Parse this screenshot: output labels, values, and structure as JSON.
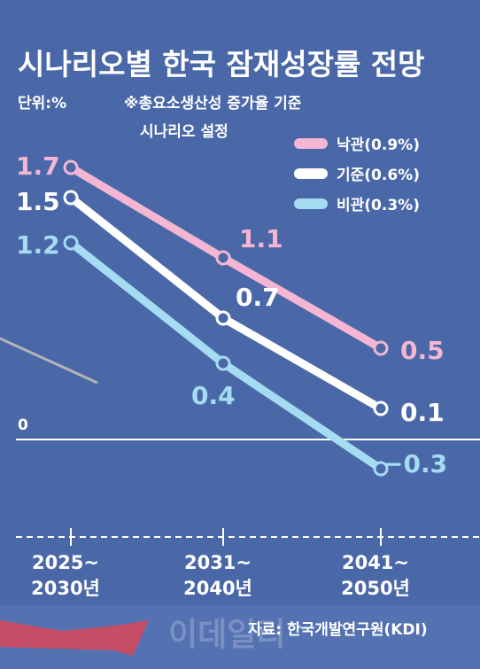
{
  "chart_data": {
    "type": "line",
    "title": "시나리오별 한국 잠재성장률 전망",
    "unit_label": "단위:%",
    "note_line1": "※총요소생산성 증가율 기준",
    "note_line2": "시나리오 설정",
    "categories": [
      [
        "2025~",
        "2030년"
      ],
      [
        "2031~",
        "2040년"
      ],
      [
        "2041~",
        "2050년"
      ]
    ],
    "zero_label": "0",
    "ylim": [
      -0.5,
      2.0
    ],
    "series": [
      {
        "name": "낙관(0.9%)",
        "color": "#f4b6d2",
        "values": [
          1.7,
          1.1,
          0.5
        ],
        "labels": [
          "1.7",
          "1.1",
          "0.5"
        ]
      },
      {
        "name": "기준(0.6%)",
        "color": "#ffffff",
        "values": [
          1.5,
          0.7,
          0.1
        ],
        "labels": [
          "1.5",
          "0.7",
          "0.1"
        ]
      },
      {
        "name": "비관(0.3%)",
        "color": "#a6dcf2",
        "values": [
          1.2,
          0.4,
          -0.3
        ],
        "labels": [
          "1.2",
          "0.4",
          "−0.3"
        ]
      }
    ],
    "source": "자료: 한국개발연구원(KDI)",
    "watermark": "이데일리"
  },
  "colors": {
    "background": "#4a68a8",
    "axis": "#ffffff",
    "deco_arrow": "#d14a5e"
  }
}
